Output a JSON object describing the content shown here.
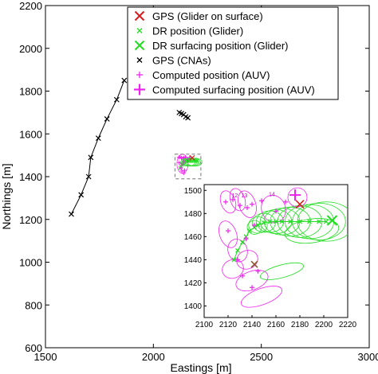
{
  "chart_data": {
    "type": "scatter",
    "xlabel": "Eastings [m]",
    "ylabel": "Northings [m]",
    "xlim": [
      1500,
      3000
    ],
    "ylim": [
      600,
      2200
    ],
    "xticks": [
      "1500",
      "2000",
      "2500",
      "3000"
    ],
    "yticks": [
      "600",
      "800",
      "1000",
      "1200",
      "1400",
      "1600",
      "1800",
      "2000",
      "2200"
    ],
    "legend_position": "top-right",
    "colors": {
      "gps": "#d42020",
      "dr": "#22dd22",
      "cna": "#000000",
      "auv": "#ee22ee"
    },
    "legend": [
      {
        "label": "GPS (Glider on surface)",
        "marker": "x-large",
        "color": "#d42020"
      },
      {
        "label": "DR position (Glider)",
        "marker": "x-small",
        "color": "#22dd22"
      },
      {
        "label": "DR surfacing position (Glider)",
        "marker": "x-large",
        "color": "#22dd22"
      },
      {
        "label": "GPS (CNAs)",
        "marker": "x-small",
        "color": "#000000"
      },
      {
        "label": "Computed position (AUV)",
        "marker": "plus-small",
        "color": "#ee22ee"
      },
      {
        "label": "Computed surfacing position (AUV)",
        "marker": "plus-large",
        "color": "#ee22ee"
      }
    ],
    "series": [
      {
        "name": "GPS (CNAs)",
        "x": [
          1620,
          1665,
          1700,
          1710,
          1745,
          1785,
          1830,
          1865,
          2120,
          2130,
          2140,
          2150,
          2160
        ],
        "y": [
          1225,
          1315,
          1400,
          1490,
          1580,
          1670,
          1760,
          1850,
          1700,
          1695,
          1690,
          1680,
          1675
        ]
      },
      {
        "name": "GPS (Glider on surface)",
        "x": [
          2180
        ],
        "y": [
          1488
        ]
      },
      {
        "name": "DR position (Glider)",
        "x": [
          2125,
          2128,
          2132,
          2135,
          2138,
          2142,
          2145,
          2150,
          2155,
          2160,
          2165,
          2172,
          2180,
          2188,
          2196,
          2202
        ],
        "y": [
          1440,
          1448,
          1455,
          1460,
          1465,
          1468,
          1470,
          1472,
          1473,
          1473,
          1473,
          1473,
          1473,
          1473,
          1473,
          1473
        ]
      },
      {
        "name": "DR surfacing position (Glider)",
        "x": [
          2207
        ],
        "y": [
          1474
        ]
      },
      {
        "name": "Computed position (AUV)",
        "x": [
          2118,
          2124,
          2130,
          2136,
          2140,
          2148,
          2160,
          2168,
          2142,
          2135,
          2128,
          2132,
          2140,
          2120,
          2145
        ],
        "y": [
          1490,
          1492,
          1487,
          1485,
          1488,
          1491,
          1482,
          1490,
          1470,
          1458,
          1440,
          1426,
          1416,
          1465,
          1430
        ]
      },
      {
        "name": "Computed surfacing position (AUV)",
        "x": [
          2176
        ],
        "y": [
          1496
        ]
      }
    ],
    "inset": {
      "xlim": [
        2100,
        2220
      ],
      "ylim": [
        1390,
        1505
      ],
      "xticks": [
        "2100",
        "2120",
        "2140",
        "2160",
        "2180",
        "2200",
        "2220"
      ],
      "yticks": [
        "1400",
        "1420",
        "1440",
        "1460",
        "1480",
        "1500"
      ],
      "sequence_labels": [
        {
          "text": "12",
          "x": 2123,
          "y": 1494
        },
        {
          "text": "13",
          "x": 2131,
          "y": 1494
        },
        {
          "text": "14",
          "x": 2154,
          "y": 1495
        }
      ]
    }
  }
}
